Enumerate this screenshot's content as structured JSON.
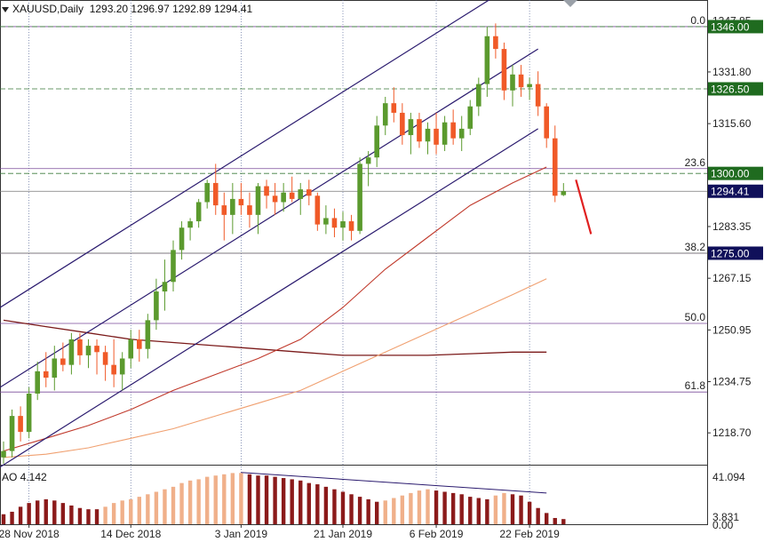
{
  "header": {
    "symbol": "XAUUSD,Daily",
    "ohlc": "1293.20 1296.97 1292.89 1294.41"
  },
  "colors": {
    "bull": "#5b9a2e",
    "bear": "#f05a28",
    "channel": "#2a1a6e",
    "ma_fast": "#c0392b",
    "ma_mid": "#f0a070",
    "ma_slow": "#7b1a1a",
    "fib": "#7a4a9a",
    "hline": "#3a7a3a",
    "ao": "#8b1a1a",
    "ao_light": "#f0b08a",
    "arrow": "#e02020",
    "tag_green": "#1f6b1f",
    "tag_navy": "#10105a"
  },
  "chart_data": [
    {
      "type": "candlestick",
      "title": "XAUUSD,Daily",
      "ylim": [
        1209,
        1351
      ],
      "y_ticks": [
        1347.85,
        1331.8,
        1315.6,
        1283.35,
        1267.15,
        1250.95,
        1234.75,
        1218.7
      ],
      "x_tick_labels": [
        {
          "label": "28 Nov 2018",
          "index": 3
        },
        {
          "label": "14 Dec 2018",
          "index": 15
        },
        {
          "label": "3 Jan 2019",
          "index": 28
        },
        {
          "label": "21 Jan 2019",
          "index": 40
        },
        {
          "label": "6 Feb 2019",
          "index": 51
        },
        {
          "label": "22 Feb 2019",
          "index": 62
        }
      ],
      "price_tags": [
        {
          "label": "1346.00",
          "value": 1346.0,
          "style": "green"
        },
        {
          "label": "1326.50",
          "value": 1326.5,
          "style": "green"
        },
        {
          "label": "1300.00",
          "value": 1300.0,
          "style": "green"
        },
        {
          "label": "1294.41",
          "value": 1294.41,
          "style": "navy"
        },
        {
          "label": "1275.00",
          "value": 1275.0,
          "style": "navy"
        }
      ],
      "fib_levels": [
        {
          "label": "0.0",
          "value": 1346.0
        },
        {
          "label": "23.6",
          "value": 1301.5
        },
        {
          "label": "38.2",
          "value": 1275.0
        },
        {
          "label": "50.0",
          "value": 1253.0
        },
        {
          "label": "61.8",
          "value": 1231.5
        }
      ],
      "candles": [
        [
          1211,
          1216,
          1209,
          1213
        ],
        [
          1213,
          1226,
          1211,
          1224
        ],
        [
          1224,
          1227,
          1216,
          1219
        ],
        [
          1219,
          1233,
          1217,
          1231
        ],
        [
          1231,
          1241,
          1229,
          1238
        ],
        [
          1238,
          1244,
          1233,
          1236
        ],
        [
          1236,
          1246,
          1232,
          1242
        ],
        [
          1242,
          1247,
          1238,
          1240
        ],
        [
          1240,
          1250,
          1237,
          1248
        ],
        [
          1248,
          1250,
          1240,
          1243
        ],
        [
          1243,
          1248,
          1239,
          1246
        ],
        [
          1246,
          1248,
          1237,
          1244
        ],
        [
          1244,
          1246,
          1235,
          1240
        ],
        [
          1240,
          1248,
          1233,
          1237
        ],
        [
          1237,
          1244,
          1232,
          1242
        ],
        [
          1242,
          1251,
          1239,
          1248
        ],
        [
          1248,
          1251,
          1241,
          1245
        ],
        [
          1245,
          1256,
          1242,
          1254
        ],
        [
          1254,
          1267,
          1251,
          1263
        ],
        [
          1263,
          1273,
          1257,
          1266
        ],
        [
          1266,
          1279,
          1263,
          1276
        ],
        [
          1276,
          1285,
          1273,
          1283
        ],
        [
          1283,
          1286,
          1279,
          1285
        ],
        [
          1285,
          1292,
          1283,
          1291
        ],
        [
          1291,
          1298,
          1289,
          1297
        ],
        [
          1297,
          1303,
          1287,
          1290
        ],
        [
          1290,
          1294,
          1279,
          1287
        ],
        [
          1287,
          1297,
          1281,
          1292
        ],
        [
          1292,
          1297,
          1287,
          1290
        ],
        [
          1290,
          1294,
          1283,
          1287
        ],
        [
          1287,
          1297,
          1281,
          1296
        ],
        [
          1296,
          1298,
          1289,
          1293
        ],
        [
          1293,
          1297,
          1287,
          1291
        ],
        [
          1291,
          1297,
          1288,
          1294
        ],
        [
          1294,
          1299,
          1291,
          1292
        ],
        [
          1292,
          1297,
          1287,
          1295
        ],
        [
          1295,
          1298,
          1290,
          1293
        ],
        [
          1293,
          1294,
          1282,
          1284
        ],
        [
          1284,
          1290,
          1281,
          1286
        ],
        [
          1286,
          1289,
          1280,
          1283
        ],
        [
          1283,
          1288,
          1279,
          1285
        ],
        [
          1285,
          1287,
          1279,
          1282
        ],
        [
          1282,
          1305,
          1281,
          1303
        ],
        [
          1303,
          1307,
          1296,
          1305
        ],
        [
          1305,
          1318,
          1302,
          1315
        ],
        [
          1315,
          1324,
          1312,
          1322
        ],
        [
          1322,
          1327,
          1316,
          1319
        ],
        [
          1319,
          1322,
          1309,
          1312
        ],
        [
          1312,
          1319,
          1306,
          1317
        ],
        [
          1317,
          1319,
          1308,
          1310
        ],
        [
          1310,
          1316,
          1306,
          1314
        ],
        [
          1314,
          1319,
          1306,
          1309
        ],
        [
          1309,
          1318,
          1307,
          1316
        ],
        [
          1316,
          1320,
          1309,
          1311
        ],
        [
          1311,
          1318,
          1307,
          1314
        ],
        [
          1314,
          1323,
          1312,
          1321
        ],
        [
          1321,
          1330,
          1318,
          1328
        ],
        [
          1328,
          1346,
          1324,
          1343
        ],
        [
          1343,
          1347,
          1336,
          1339
        ],
        [
          1339,
          1341,
          1323,
          1326
        ],
        [
          1326,
          1334,
          1321,
          1331
        ],
        [
          1331,
          1334,
          1324,
          1327
        ],
        [
          1327,
          1330,
          1323,
          1328
        ],
        [
          1328,
          1332,
          1318,
          1321
        ],
        [
          1321,
          1322,
          1308,
          1311
        ],
        [
          1311,
          1315,
          1291,
          1293
        ],
        [
          1293.2,
          1296.97,
          1292.89,
          1294.41
        ]
      ],
      "ma_slow": [
        [
          0,
          1254
        ],
        [
          5,
          1252
        ],
        [
          10,
          1250
        ],
        [
          15,
          1248
        ],
        [
          20,
          1247
        ],
        [
          25,
          1246
        ],
        [
          30,
          1245
        ],
        [
          35,
          1244
        ],
        [
          40,
          1243
        ],
        [
          45,
          1243
        ],
        [
          50,
          1243
        ],
        [
          55,
          1243.5
        ],
        [
          60,
          1244
        ],
        [
          64,
          1244
        ]
      ],
      "ma_fast": [
        [
          0,
          1213
        ],
        [
          5,
          1217
        ],
        [
          10,
          1221
        ],
        [
          15,
          1226
        ],
        [
          20,
          1232
        ],
        [
          25,
          1237
        ],
        [
          30,
          1242
        ],
        [
          35,
          1248
        ],
        [
          40,
          1258
        ],
        [
          45,
          1270
        ],
        [
          50,
          1280
        ],
        [
          55,
          1290
        ],
        [
          60,
          1297
        ],
        [
          64,
          1302
        ]
      ],
      "ma_mid": [
        [
          0,
          1211
        ],
        [
          5,
          1212
        ],
        [
          10,
          1214
        ],
        [
          15,
          1217
        ],
        [
          20,
          1220
        ],
        [
          25,
          1224
        ],
        [
          30,
          1228
        ],
        [
          35,
          1232
        ],
        [
          40,
          1238
        ],
        [
          45,
          1244
        ],
        [
          50,
          1250
        ],
        [
          55,
          1256
        ],
        [
          60,
          1262
        ],
        [
          64,
          1267
        ]
      ],
      "channel_upper": [
        [
          -1,
          1257
        ],
        [
          63,
          1364
        ]
      ],
      "channel_lower": [
        [
          -1,
          1207
        ],
        [
          63,
          1314
        ]
      ],
      "channel_mid": [
        [
          -1,
          1232
        ],
        [
          63,
          1339
        ]
      ]
    },
    {
      "type": "bar",
      "title": "AO 4.142",
      "ylim": [
        0,
        42
      ],
      "y_ticks": [
        "41.094",
        "3.831",
        "0.00"
      ],
      "values": [
        8,
        10,
        14,
        17,
        19,
        20,
        19,
        17,
        15,
        13,
        12,
        12,
        14,
        17,
        19,
        20,
        22,
        24,
        26,
        28,
        30,
        33,
        35,
        36,
        38,
        39,
        40,
        41,
        41.1,
        40,
        39,
        39,
        38,
        37,
        36,
        35,
        33,
        32,
        30,
        28,
        26,
        24,
        22,
        20,
        18,
        19,
        21,
        23,
        25,
        27,
        28,
        27,
        26,
        25,
        24,
        22,
        21,
        20,
        23,
        25,
        24,
        23,
        18,
        13,
        9,
        5,
        4.142
      ],
      "colors": [
        "ao",
        "ao",
        "ao",
        "ao",
        "ao",
        "ao",
        "ao",
        "ao",
        "ao",
        "ao",
        "ao",
        "ao",
        "ao_light",
        "ao_light",
        "ao_light",
        "ao_light",
        "ao_light",
        "ao_light",
        "ao_light",
        "ao_light",
        "ao_light",
        "ao_light",
        "ao_light",
        "ao_light",
        "ao_light",
        "ao_light",
        "ao_light",
        "ao_light",
        "ao_light",
        "ao",
        "ao",
        "ao",
        "ao",
        "ao",
        "ao",
        "ao",
        "ao",
        "ao",
        "ao",
        "ao",
        "ao",
        "ao",
        "ao",
        "ao",
        "ao",
        "ao_light",
        "ao_light",
        "ao_light",
        "ao_light",
        "ao_light",
        "ao_light",
        "ao",
        "ao",
        "ao",
        "ao",
        "ao",
        "ao",
        "ao",
        "ao_light",
        "ao_light",
        "ao",
        "ao",
        "ao",
        "ao",
        "ao",
        "ao",
        "ao"
      ]
    }
  ]
}
